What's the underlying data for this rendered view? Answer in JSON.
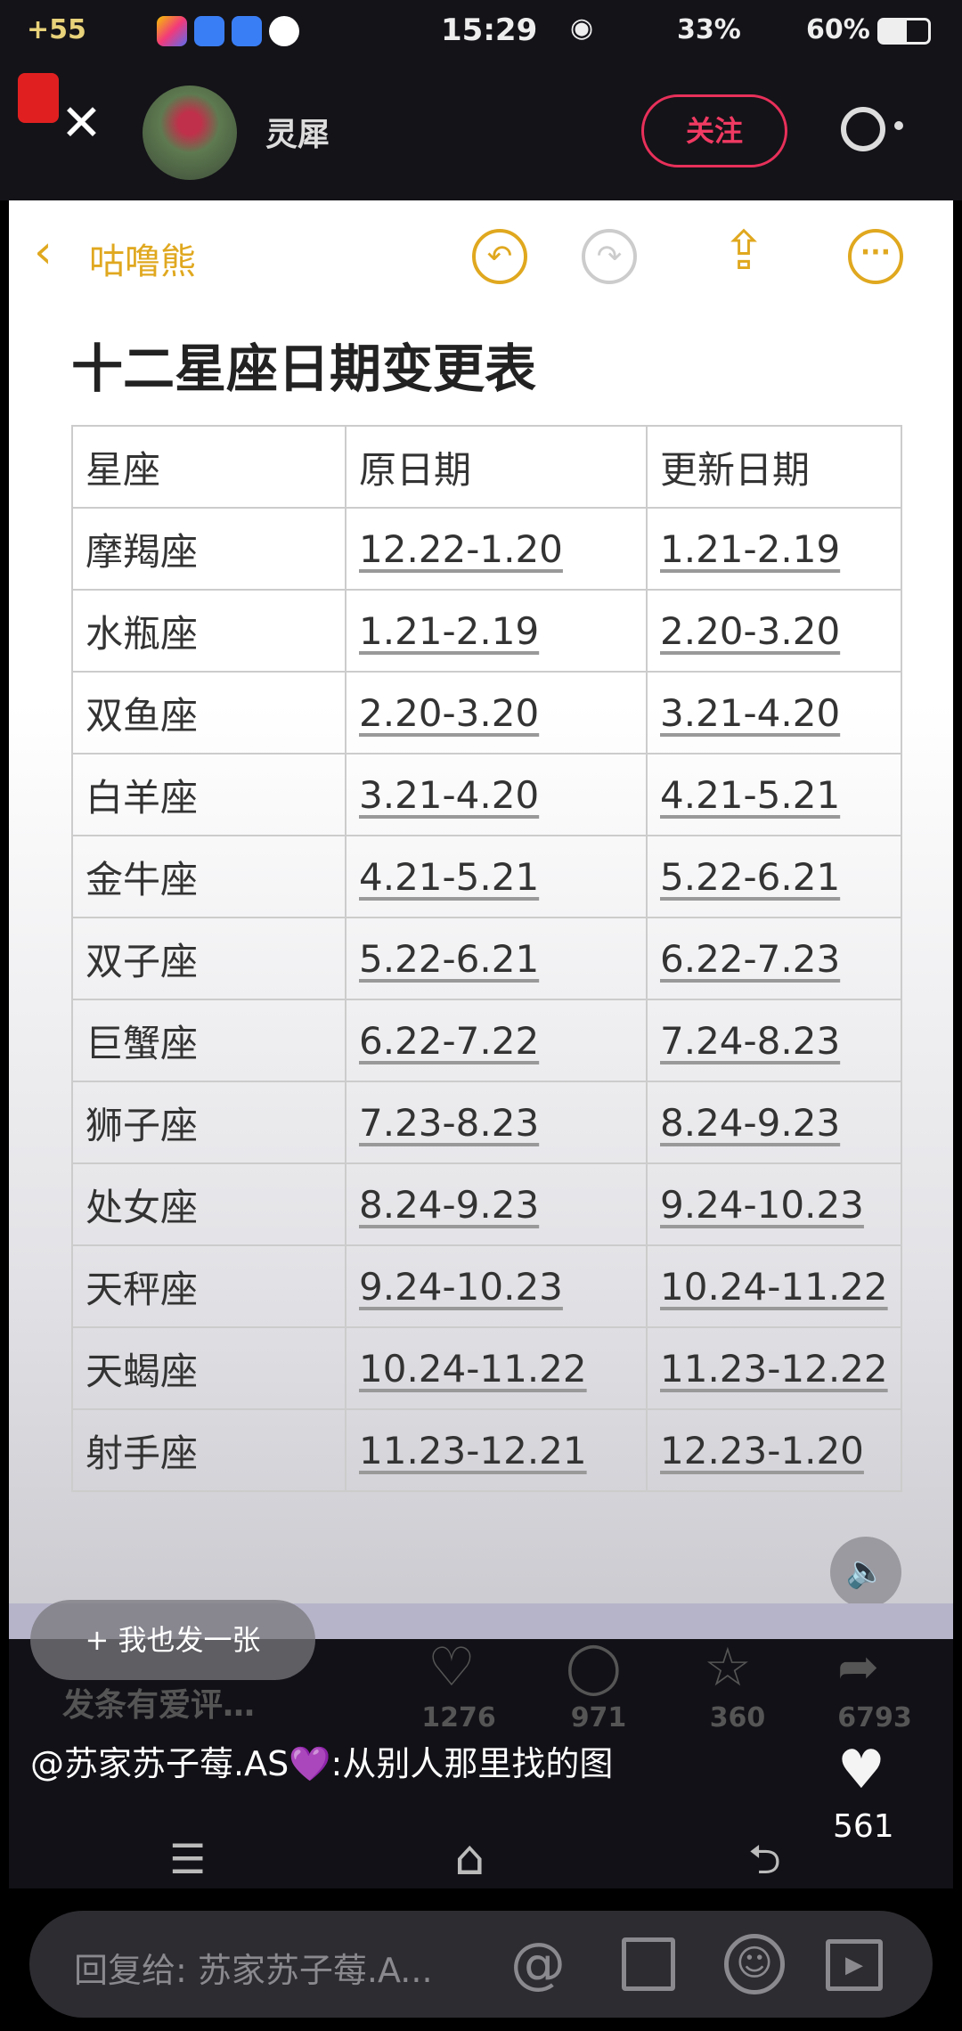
{
  "status_bar": {
    "left_text": "+55",
    "time": "15:29",
    "signal_text": "33%",
    "battery_text": "60%"
  },
  "header": {
    "username": "灵犀",
    "follow_label": "关注",
    "close_icon": "close-icon",
    "search_icon": "search-icon"
  },
  "note": {
    "back_label": "咕噜熊",
    "title": "十二星座日期变更表"
  },
  "table": {
    "headers": [
      "星座",
      "原日期",
      "更新日期"
    ],
    "rows": [
      [
        "摩羯座",
        "12.22-1.20",
        "1.21-2.19"
      ],
      [
        "水瓶座",
        "1.21-2.19",
        "2.20-3.20"
      ],
      [
        "双鱼座",
        "2.20-3.20",
        "3.21-4.20"
      ],
      [
        "白羊座",
        "3.21-4.20",
        "4.21-5.21"
      ],
      [
        "金牛座",
        "4.21-5.21",
        "5.22-6.21"
      ],
      [
        "双子座",
        "5.22-6.21",
        "6.22-7.23"
      ],
      [
        "巨蟹座",
        "6.22-7.22",
        "7.24-8.23"
      ],
      [
        "狮子座",
        "7.23-8.23",
        "8.24-9.23"
      ],
      [
        "处女座",
        "8.24-9.23",
        "9.24-10.23"
      ],
      [
        "天秤座",
        "9.24-10.23",
        "10.24-11.22"
      ],
      [
        "天蝎座",
        "10.24-11.22",
        "11.23-12.22"
      ],
      [
        "射手座",
        "11.23-12.21",
        "12.23-1.20"
      ]
    ]
  },
  "actions": {
    "post_too": "+ 我也发一张",
    "comment_placeholder": "发条有爱评…",
    "likes": "1276",
    "comments": "971",
    "favorites": "360",
    "shares": "6793"
  },
  "comment": {
    "text": "@苏家苏子莓.AS💜:从别人那里找的图",
    "like_count": "561"
  },
  "reply": {
    "placeholder": "回复给: 苏家苏子莓.A..."
  }
}
